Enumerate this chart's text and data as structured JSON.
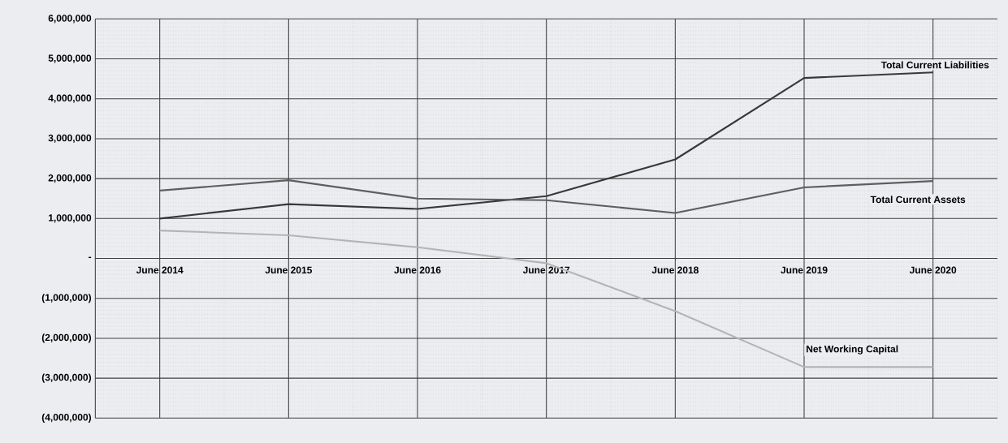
{
  "chart_data": {
    "type": "line",
    "categories": [
      "June 2014",
      "June 2015",
      "June 2016",
      "June 2017",
      "June 2018",
      "June 2019",
      "June 2020"
    ],
    "series": [
      {
        "name": "Total Current Liabilities",
        "color": "#383838",
        "values": [
          1000000,
          1360000,
          1240000,
          1560000,
          2480000,
          4520000,
          4660000
        ]
      },
      {
        "name": "Total Current Assets",
        "color": "#5e5e5e",
        "values": [
          1700000,
          1960000,
          1500000,
          1460000,
          1140000,
          1780000,
          1940000
        ]
      },
      {
        "name": "Net Working Capital",
        "color": "#b4b4b4",
        "values": [
          700000,
          580000,
          280000,
          -120000,
          -1320000,
          -2720000,
          -2720000
        ]
      }
    ],
    "ylim": [
      -4000000,
      6000000
    ],
    "yticks": [
      {
        "value": -4000000,
        "label": "(4,000,000)"
      },
      {
        "value": -3000000,
        "label": "(3,000,000)"
      },
      {
        "value": -2000000,
        "label": "(2,000,000)"
      },
      {
        "value": -1000000,
        "label": "(1,000,000)"
      },
      {
        "value": 0,
        "label": "-"
      },
      {
        "value": 1000000,
        "label": "1,000,000"
      },
      {
        "value": 2000000,
        "label": "2,000,000"
      },
      {
        "value": 3000000,
        "label": "3,000,000"
      },
      {
        "value": 4000000,
        "label": "4,000,000"
      },
      {
        "value": 5000000,
        "label": "5,000,000"
      },
      {
        "value": 6000000,
        "label": "6,000,000"
      }
    ],
    "grid": true,
    "marker": "none",
    "line_style": "solid"
  }
}
